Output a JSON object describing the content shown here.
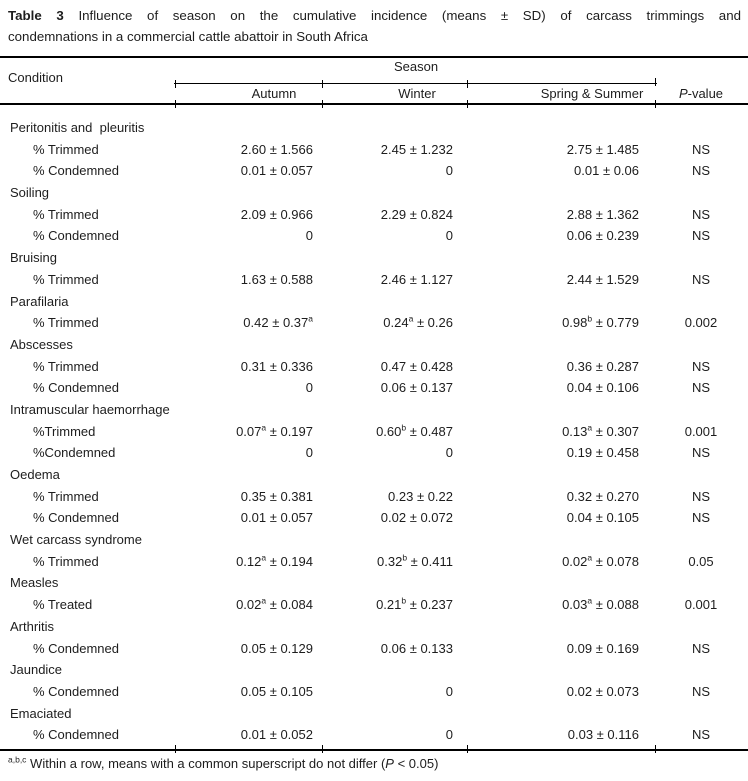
{
  "title": {
    "prefix": "Table 3",
    "line1_rest": "Influence of season on the cumulative incidence (means ± SD) of carcass trimmings and",
    "line2": "condemnations in a commercial cattle abattoir in South Africa"
  },
  "header": {
    "condition": "Condition",
    "season": "Season",
    "columns": [
      "Autumn",
      "Winter",
      "Spring & Summer"
    ],
    "pvalue_italic": "P",
    "pvalue_rest": "-value"
  },
  "rows": [
    {
      "type": "category",
      "label": "Peritonitis and  pleuritis"
    },
    {
      "type": "data",
      "label": "% Trimmed",
      "autumn": "2.60 ± 1.566",
      "winter": "2.45 ± 1.232",
      "spring": "2.75 ± 1.485",
      "p": "NS"
    },
    {
      "type": "data",
      "label": "% Condemned",
      "autumn": "0.01 ± 0.057",
      "winter": "0",
      "spring": "0.01 ± 0.06",
      "p": "NS"
    },
    {
      "type": "category",
      "label": "Soiling"
    },
    {
      "type": "data",
      "label": "% Trimmed",
      "autumn": "2.09 ± 0.966",
      "winter": "2.29 ± 0.824",
      "spring": "2.88 ± 1.362",
      "p": "NS"
    },
    {
      "type": "data",
      "label": "% Condemned",
      "autumn": "0",
      "winter": "0",
      "spring": "0.06 ± 0.239",
      "p": "NS"
    },
    {
      "type": "category",
      "label": "Bruising"
    },
    {
      "type": "data",
      "label": "% Trimmed",
      "autumn": "1.63 ± 0.588",
      "winter": "2.46 ± 1.127",
      "spring": "2.44 ± 1.529",
      "p": "NS"
    },
    {
      "type": "category",
      "label": "Parafilaria"
    },
    {
      "type": "data",
      "label": "% Trimmed",
      "autumn": "0.42 ± 0.37^a",
      "winter": "0.24^a ± 0.26",
      "spring": "0.98^b ± 0.779",
      "p": "0.002"
    },
    {
      "type": "category",
      "label": "Abscesses"
    },
    {
      "type": "data",
      "label": "% Trimmed",
      "autumn": "0.31 ± 0.336",
      "winter": "0.47 ± 0.428",
      "spring": "0.36 ± 0.287",
      "p": "NS"
    },
    {
      "type": "data",
      "label": "% Condemned",
      "autumn": "0",
      "winter": "0.06 ± 0.137",
      "spring": "0.04 ± 0.106",
      "p": "NS"
    },
    {
      "type": "category",
      "label": "Intramuscular haemorrhage"
    },
    {
      "type": "data",
      "label": "%Trimmed",
      "autumn": "0.07^a ± 0.197",
      "winter": "0.60^b ± 0.487",
      "spring": "0.13^a ± 0.307",
      "p": "0.001"
    },
    {
      "type": "data",
      "label": "%Condemned",
      "autumn": "0",
      "winter": "0",
      "spring": "0.19 ± 0.458",
      "p": "NS"
    },
    {
      "type": "category",
      "label": "Oedema"
    },
    {
      "type": "data",
      "label": "% Trimmed",
      "autumn": "0.35 ± 0.381",
      "winter": "0.23 ± 0.22",
      "spring": "0.32 ± 0.270",
      "p": "NS"
    },
    {
      "type": "data",
      "label": "% Condemned",
      "autumn": "0.01 ± 0.057",
      "winter": "0.02 ± 0.072",
      "spring": "0.04 ± 0.105",
      "p": "NS"
    },
    {
      "type": "category",
      "label": "Wet carcass syndrome"
    },
    {
      "type": "data",
      "label": "% Trimmed",
      "autumn": "0.12^a ± 0.194",
      "winter": "0.32^b ± 0.411",
      "spring": "0.02^a ± 0.078",
      "p": "0.05"
    },
    {
      "type": "category",
      "label": "Measles"
    },
    {
      "type": "data",
      "label": "% Treated",
      "autumn": "0.02^a ± 0.084",
      "winter": "0.21^b ± 0.237",
      "spring": "0.03^a ± 0.088",
      "p": "0.001"
    },
    {
      "type": "category",
      "label": "Arthritis"
    },
    {
      "type": "data",
      "label": "% Condemned",
      "autumn": "0.05 ± 0.129",
      "winter": "0.06 ± 0.133",
      "spring": "0.09 ± 0.169",
      "p": "NS"
    },
    {
      "type": "category",
      "label": "Jaundice"
    },
    {
      "type": "data",
      "label": "% Condemned",
      "autumn": "0.05 ± 0.105",
      "winter": "0",
      "spring": "0.02 ± 0.073",
      "p": "NS"
    },
    {
      "type": "category",
      "label": "Emaciated"
    },
    {
      "type": "data",
      "label": "% Condemned",
      "autumn": "0.01 ± 0.052",
      "winter": "0",
      "spring": "0.03 ± 0.116",
      "p": "NS"
    }
  ],
  "footnote": {
    "sup": "a,b,c",
    "text_before_p": " Within a row, means with a common superscript do not differ (",
    "p": "P",
    "text_after_p": " < 0.05)"
  }
}
